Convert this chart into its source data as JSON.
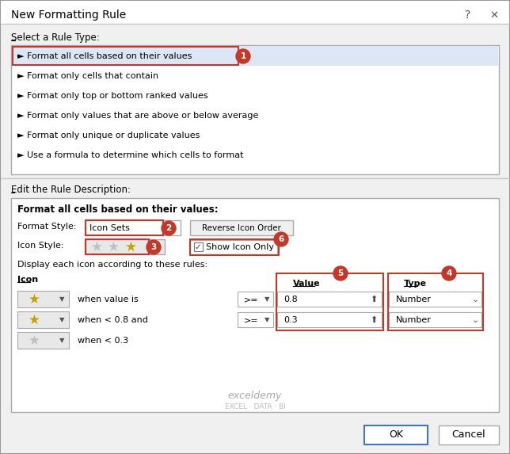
{
  "title": "New Formatting Rule",
  "bg_color": "#f0f0f0",
  "white": "#ffffff",
  "red": "#c0392b",
  "blue_border": "#4472c4",
  "selected_bg": "#dce6f5",
  "rule_types": [
    "► Format all cells based on their values",
    "► Format only cells that contain",
    "► Format only top or bottom ranked values",
    "► Format only values that are above or below average",
    "► Format only unique or duplicate values",
    "► Use a formula to determine which cells to format"
  ],
  "format_header": "Format all cells based on their values:",
  "format_style_label": "Format Style:",
  "format_style_value": "Icon Sets",
  "icon_style_label": "Icon Style:",
  "reverse_btn": "Reverse Icon Order",
  "show_icon_only_label": "Show Icon Only",
  "display_text": "Display each icon according to these rules:",
  "icon_col": "Icon",
  "value_col": "Value",
  "type_col": "Type",
  "section1": "Select a Rule Type:",
  "section2": "Edit the Rule Description:",
  "ok": "OK",
  "cancel": "Cancel",
  "watermark1": "exceldemy",
  "watermark2": "EXCEL · DATA · BI",
  "star_gold": "#c8a000",
  "star_grey": "#c0c0c0",
  "rows": [
    {
      "text": "when value is",
      "op": ">=",
      "val": "0.8",
      "type": "Number",
      "star": "gold"
    },
    {
      "text": "when < 0.8 and",
      "op": ">=",
      "val": "0.3",
      "type": "Number",
      "star": "gold"
    },
    {
      "text": "when < 0.3",
      "op": "",
      "val": "",
      "type": "",
      "star": "grey"
    }
  ]
}
